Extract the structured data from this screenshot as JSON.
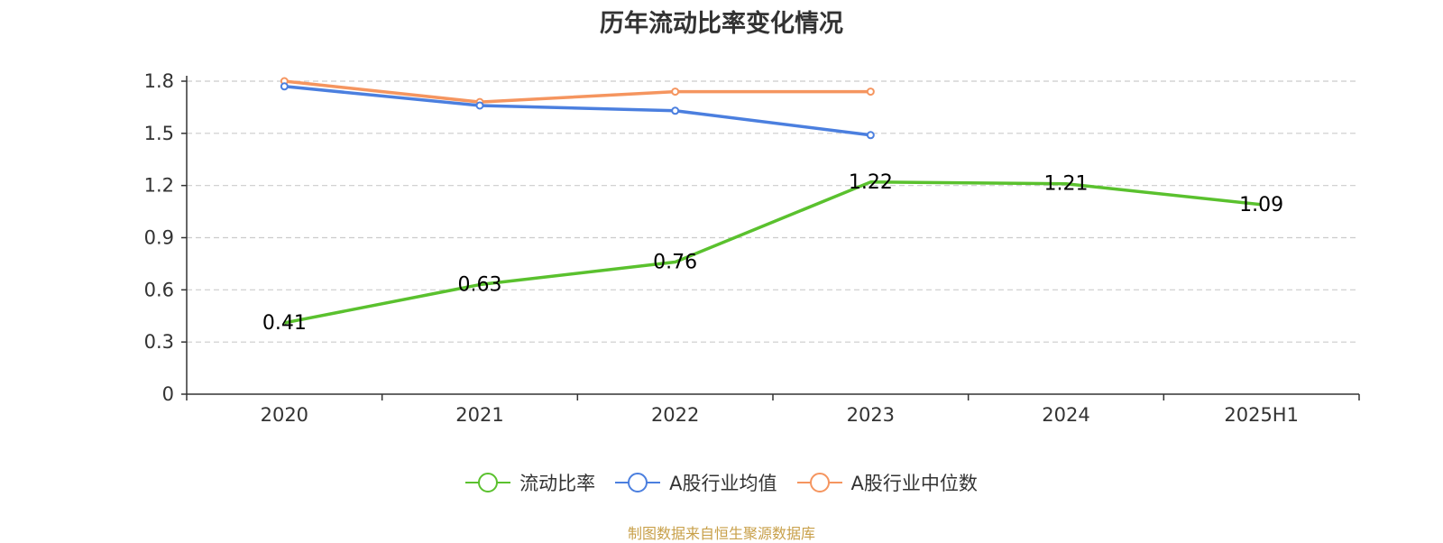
{
  "colors": {
    "series": [
      "#5ac12e",
      "#4b7fdf",
      "#f5955f"
    ],
    "axis": "#333333",
    "grid": "#cccccc",
    "source": "#c8a04a"
  },
  "footer": {
    "source": "制图数据来自恒生聚源数据库"
  },
  "chart_data": {
    "type": "line",
    "title": "历年流动比率变化情况",
    "categories": [
      "2020",
      "2021",
      "2022",
      "2023",
      "2024",
      "2025H1"
    ],
    "y_ticks": [
      "0",
      "0.3",
      "0.6",
      "0.9",
      "1.2",
      "1.5",
      "1.8"
    ],
    "ylim": [
      0,
      1.8
    ],
    "grid": true,
    "legend_position": "bottom",
    "series": [
      {
        "name": "流动比率",
        "values": [
          0.41,
          0.63,
          0.76,
          1.22,
          1.21,
          1.09
        ],
        "labels": [
          "0.41",
          "0.63",
          "0.76",
          "1.22",
          "1.21",
          "1.09"
        ],
        "show_labels": true
      },
      {
        "name": "A股行业均值",
        "values": [
          1.77,
          1.66,
          1.63,
          1.49,
          null,
          null
        ],
        "show_labels": false
      },
      {
        "name": "A股行业中位数",
        "values": [
          1.8,
          1.68,
          1.74,
          1.74,
          null,
          null
        ],
        "show_labels": false
      }
    ]
  }
}
